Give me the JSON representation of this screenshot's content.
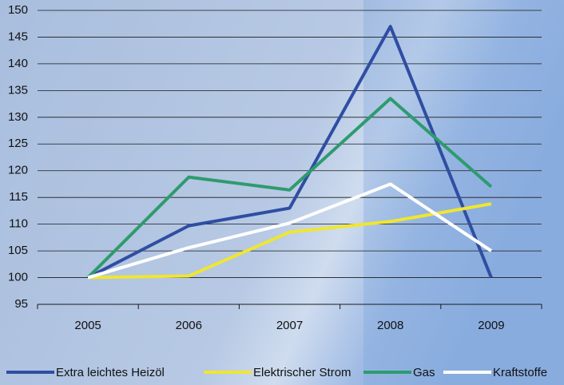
{
  "chart_data": {
    "type": "line",
    "categories": [
      "2005",
      "2006",
      "2007",
      "2008",
      "2009"
    ],
    "series": [
      {
        "name": "Extra leichtes Heizöl",
        "color": "#2f4ea2",
        "values": [
          100,
          109.7,
          113,
          147,
          100
        ]
      },
      {
        "name": "Elektrischer Strom",
        "color": "#efe631",
        "values": [
          100,
          100.3,
          108.5,
          110.5,
          113.8
        ]
      },
      {
        "name": "Gas",
        "color": "#2e9b6e",
        "values": [
          100,
          118.8,
          116.4,
          133.5,
          117
        ]
      },
      {
        "name": "Kraftstoffe",
        "color": "#ffffff",
        "values": [
          100,
          105.6,
          110.2,
          117.5,
          105
        ]
      }
    ],
    "ylim": [
      95,
      150
    ],
    "yticks": [
      95,
      100,
      105,
      110,
      115,
      120,
      125,
      130,
      135,
      140,
      145,
      150
    ],
    "grid": true
  }
}
